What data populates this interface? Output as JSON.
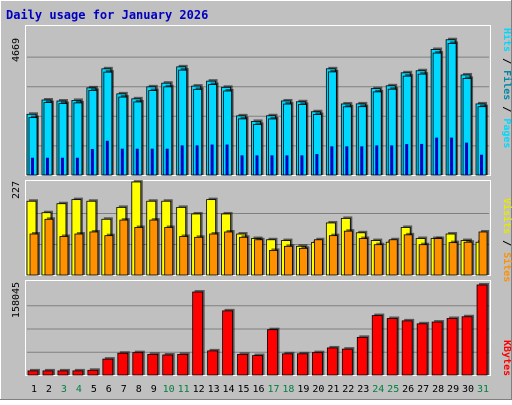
{
  "chart_data": [
    {
      "type": "bar",
      "title": "Daily usage for January 2026",
      "panel": "hits-files-pages",
      "ymax_label": "4669",
      "ylim": [
        0,
        4669
      ],
      "legend": [
        "Pages",
        "Files",
        "Hits"
      ],
      "categories": [
        "1",
        "2",
        "3",
        "4",
        "5",
        "6",
        "7",
        "8",
        "9",
        "10",
        "11",
        "12",
        "13",
        "14",
        "15",
        "16",
        "17",
        "18",
        "19",
        "20",
        "21",
        "22",
        "23",
        "24",
        "25",
        "26",
        "27",
        "28",
        "29",
        "30",
        "31"
      ],
      "weekend_days": [
        "3",
        "4",
        "10",
        "11",
        "17",
        "18",
        "24",
        "25",
        "31"
      ],
      "series": [
        {
          "name": "Hits",
          "values": [
            1915,
            2366,
            2334,
            2353,
            2749,
            3350,
            2560,
            2403,
            2781,
            2897,
            3412,
            2805,
            2961,
            2766,
            1866,
            1690,
            1869,
            2336,
            2310,
            1995,
            3350,
            2241,
            2244,
            2725,
            2814,
            3224,
            3289,
            3959,
            4267,
            3156,
            2243
          ]
        },
        {
          "name": "Files",
          "values": [
            1810,
            2284,
            2252,
            2274,
            2667,
            3245,
            2458,
            2304,
            2663,
            2781,
            3308,
            2701,
            2853,
            2650,
            1770,
            1595,
            1768,
            2238,
            2223,
            1908,
            3252,
            2150,
            2155,
            2622,
            2706,
            3118,
            3181,
            3846,
            4150,
            3046,
            2155
          ]
        },
        {
          "name": "Pages",
          "values": [
            545,
            545,
            545,
            545,
            820,
            1080,
            830,
            830,
            830,
            830,
            935,
            935,
            960,
            960,
            620,
            620,
            620,
            620,
            620,
            660,
            905,
            905,
            905,
            935,
            935,
            975,
            980,
            1180,
            1180,
            1020,
            640
          ]
        }
      ]
    },
    {
      "type": "bar",
      "panel": "visits-sites",
      "ymax_label": "227",
      "ylim": [
        0,
        227
      ],
      "legend": [
        "Sites",
        "Visits"
      ],
      "categories": [
        "1",
        "2",
        "3",
        "4",
        "5",
        "6",
        "7",
        "8",
        "9",
        "10",
        "11",
        "12",
        "13",
        "14",
        "15",
        "16",
        "17",
        "18",
        "19",
        "20",
        "21",
        "22",
        "23",
        "24",
        "25",
        "26",
        "27",
        "28",
        "29",
        "30",
        "31"
      ],
      "series": [
        {
          "name": "Visits",
          "values": [
            180,
            152,
            174,
            184,
            180,
            136,
            165,
            227,
            180,
            180,
            165,
            149,
            184,
            149,
            100,
            89,
            86,
            84,
            70,
            79,
            127,
            138,
            103,
            84,
            80,
            116,
            89,
            89,
            100,
            84,
            80
          ]
        },
        {
          "name": "Sites",
          "values": [
            100,
            136,
            94,
            100,
            105,
            96,
            134,
            116,
            134,
            116,
            94,
            92,
            100,
            105,
            92,
            86,
            60,
            70,
            65,
            86,
            96,
            107,
            89,
            74,
            86,
            98,
            74,
            89,
            79,
            80,
            105
          ]
        }
      ]
    },
    {
      "type": "bar",
      "panel": "kbytes",
      "ymax_label": "158045",
      "ylim": [
        0,
        158045
      ],
      "legend": [
        "KBytes"
      ],
      "categories": [
        "1",
        "2",
        "3",
        "4",
        "5",
        "6",
        "7",
        "8",
        "9",
        "10",
        "11",
        "12",
        "13",
        "14",
        "15",
        "16",
        "17",
        "18",
        "19",
        "20",
        "21",
        "22",
        "23",
        "24",
        "25",
        "26",
        "27",
        "28",
        "29",
        "30",
        "31"
      ],
      "series": [
        {
          "name": "KBytes",
          "values": [
            7000,
            7000,
            7000,
            7000,
            8000,
            27000,
            37000,
            38000,
            35000,
            34000,
            35000,
            141000,
            41000,
            109000,
            35000,
            33000,
            77000,
            36000,
            36000,
            38000,
            46000,
            44000,
            64000,
            101000,
            96000,
            92000,
            87000,
            90000,
            96000,
            99000,
            153000
          ]
        }
      ]
    }
  ],
  "colors": {
    "background": "#c0c0c0",
    "border": "#ffffff",
    "title": "#0000c0",
    "weekday_label": "#000000",
    "weekend_label": "#008040",
    "hits": "#00d8ff",
    "files": "#0088a8",
    "pages": "#0000c0",
    "visits": "#ffff00",
    "sites": "#ff9000",
    "kbytes": "#ff0000",
    "grid": "#808080"
  }
}
